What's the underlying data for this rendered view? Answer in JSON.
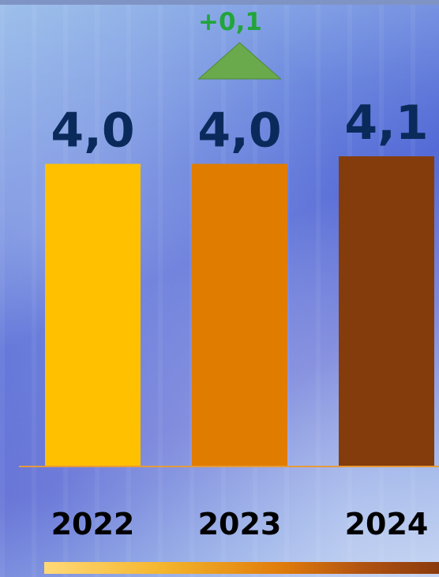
{
  "chart_data": {
    "type": "bar",
    "categories": [
      "2022",
      "2023",
      "2024"
    ],
    "values": [
      4.0,
      4.0,
      4.1
    ],
    "value_labels": [
      "4,0",
      "4,0",
      "4,1"
    ],
    "bar_colors": [
      "#ffc000",
      "#e07c00",
      "#843c0c"
    ],
    "ylim": [
      0,
      4.1
    ],
    "grid": false,
    "annotations": [
      {
        "text": "+0,1",
        "category": "2023",
        "marker": "triangle-up",
        "color": "#6aaa4c",
        "text_color": "#22a43a"
      }
    ],
    "axis_color": "#e69a3a"
  }
}
